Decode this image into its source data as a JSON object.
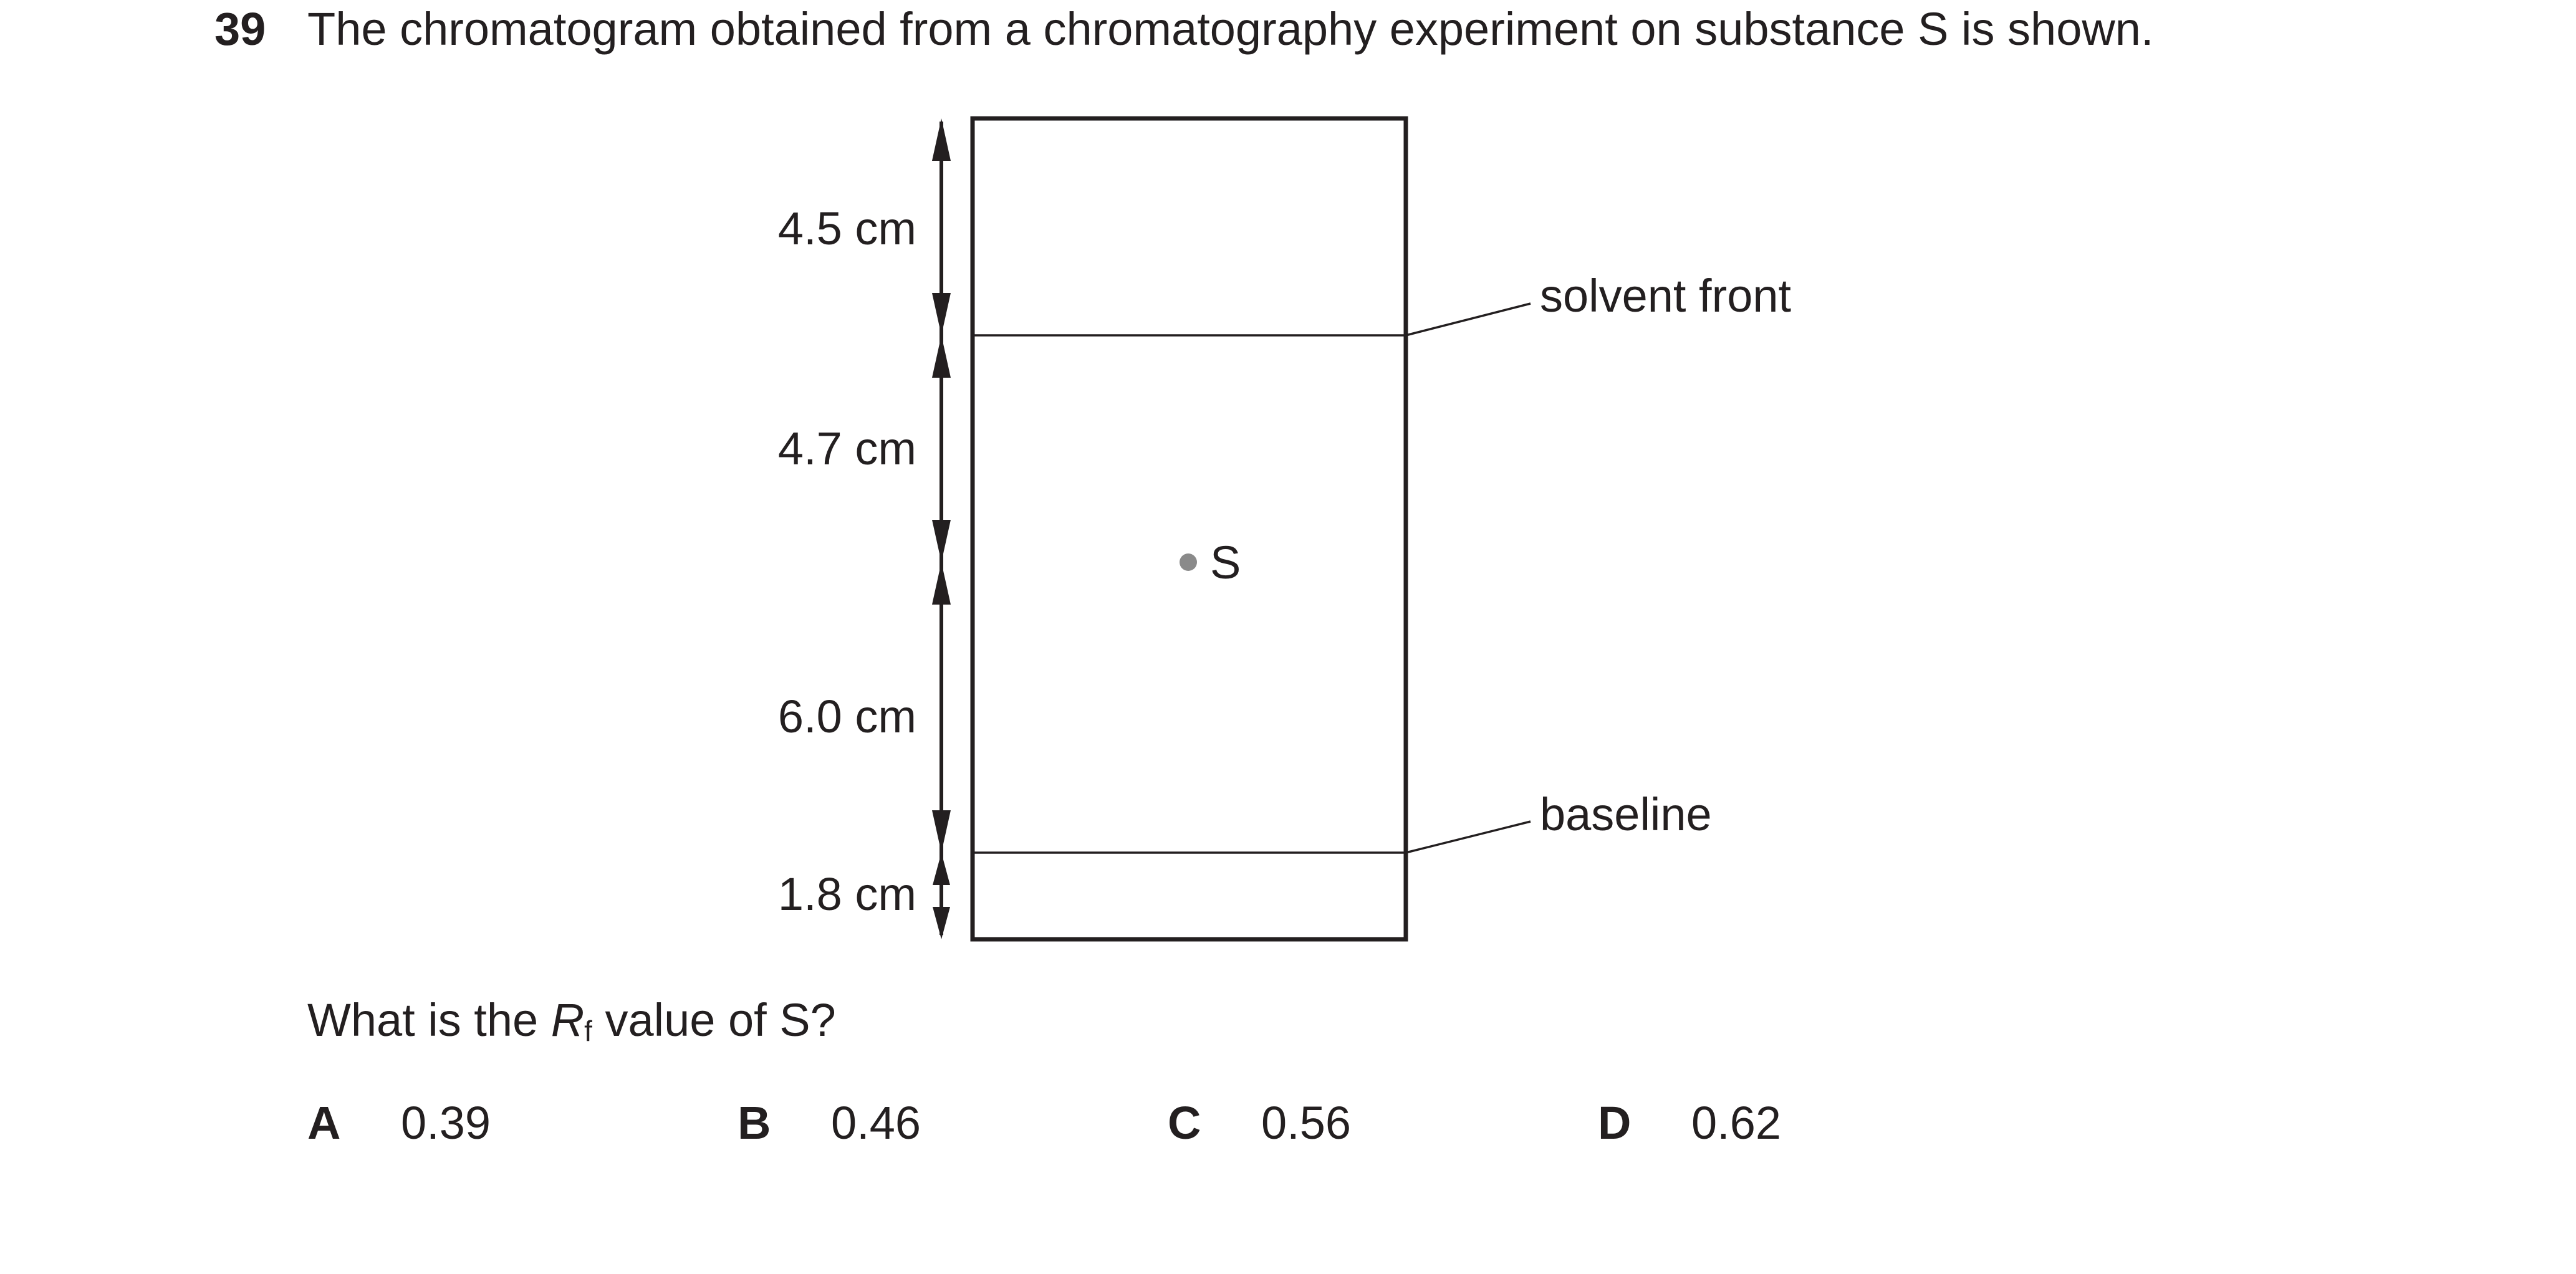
{
  "question": {
    "number": "39",
    "stem": "The chromatogram obtained from a chromatography experiment on substance S is shown.",
    "prompt_before": "What is the ",
    "prompt_symbol": "R",
    "prompt_subscript": "f",
    "prompt_after": " value of S?"
  },
  "diagram": {
    "measurements": [
      "4.5 cm",
      "4.7 cm",
      "6.0 cm",
      "1.8 cm"
    ],
    "labels": {
      "solvent_front": "solvent front",
      "baseline": "baseline",
      "spot": "S"
    }
  },
  "options": [
    {
      "letter": "A",
      "value": "0.39"
    },
    {
      "letter": "B",
      "value": "0.46"
    },
    {
      "letter": "C",
      "value": "0.56"
    },
    {
      "letter": "D",
      "value": "0.62"
    }
  ]
}
